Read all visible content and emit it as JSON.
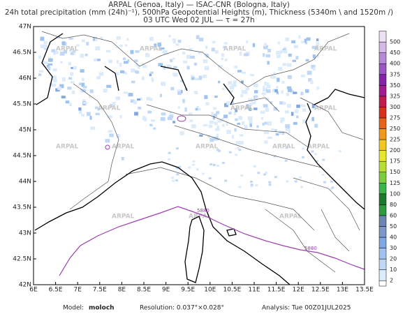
{
  "header": {
    "line1": "ARPAL (Genoa, Italy)  —  ISAC-CNR (Bologna, Italy)",
    "line2": "24h total precipitation (mm (24h)⁻¹), 500hPa Geopotential Heights (m), Thickness (5340m \\ and 1520m /)",
    "line3": "03 UTC Wed 02 JUL  —  τ = 27h"
  },
  "map": {
    "xlim": [
      6,
      13.5
    ],
    "ylim": [
      42,
      47
    ],
    "xticks": [
      {
        "value": 6,
        "label": "6E"
      },
      {
        "value": 6.5,
        "label": "6.5E"
      },
      {
        "value": 7,
        "label": "7E"
      },
      {
        "value": 7.5,
        "label": "7.5E"
      },
      {
        "value": 8,
        "label": "8E"
      },
      {
        "value": 8.5,
        "label": "8.5E"
      },
      {
        "value": 9,
        "label": "9E"
      },
      {
        "value": 9.5,
        "label": "9.5E"
      },
      {
        "value": 10,
        "label": "10E"
      },
      {
        "value": 10.5,
        "label": "10.5E"
      },
      {
        "value": 11,
        "label": "11E"
      },
      {
        "value": 11.5,
        "label": "11.5E"
      },
      {
        "value": 12,
        "label": "12E"
      },
      {
        "value": 12.5,
        "label": "12.5E"
      },
      {
        "value": 13,
        "label": "13E"
      },
      {
        "value": 13.5,
        "label": "13.5E"
      }
    ],
    "yticks": [
      {
        "value": 47,
        "label": "47N"
      },
      {
        "value": 46.5,
        "label": "46.5N"
      },
      {
        "value": 46,
        "label": "46N"
      },
      {
        "value": 45.5,
        "label": "45.5N"
      },
      {
        "value": 45,
        "label": "45N"
      },
      {
        "value": 44.5,
        "label": "44.5N"
      },
      {
        "value": 44,
        "label": "44N"
      },
      {
        "value": 43.5,
        "label": "43.5N"
      },
      {
        "value": 43,
        "label": "43N"
      },
      {
        "value": 42.5,
        "label": "42.5N"
      },
      {
        "value": 42,
        "label": "42N"
      }
    ],
    "contour_label": "5880",
    "watermark": "ARPAL"
  },
  "colorbar": {
    "levels": [
      2,
      10,
      20,
      30,
      40,
      50,
      60,
      80,
      100,
      125,
      150,
      175,
      200,
      225,
      250,
      275,
      300,
      325,
      350,
      375,
      400,
      450,
      500
    ],
    "colors": [
      "#dcebfa",
      "#c0d8f5",
      "#9fc3ee",
      "#7fa8e3",
      "#7d97c9",
      "#6c86b0",
      "#2e9a3e",
      "#1c7a2c",
      "#3ab54a",
      "#7ccc3e",
      "#b7de35",
      "#e6e62c",
      "#f2c623",
      "#f09a1d",
      "#e8641b",
      "#d8321c",
      "#c21b4d",
      "#a31c8f",
      "#8424a8",
      "#9b57c2",
      "#b68ad6",
      "#d4b8e8",
      "#ede0f5"
    ]
  },
  "footer": {
    "model_label": "Model:",
    "model": "moloch",
    "resolution": "Resolution: 0.037°×0.028°",
    "analysis": "Analysis: Tue 00Z01JUL2025"
  }
}
